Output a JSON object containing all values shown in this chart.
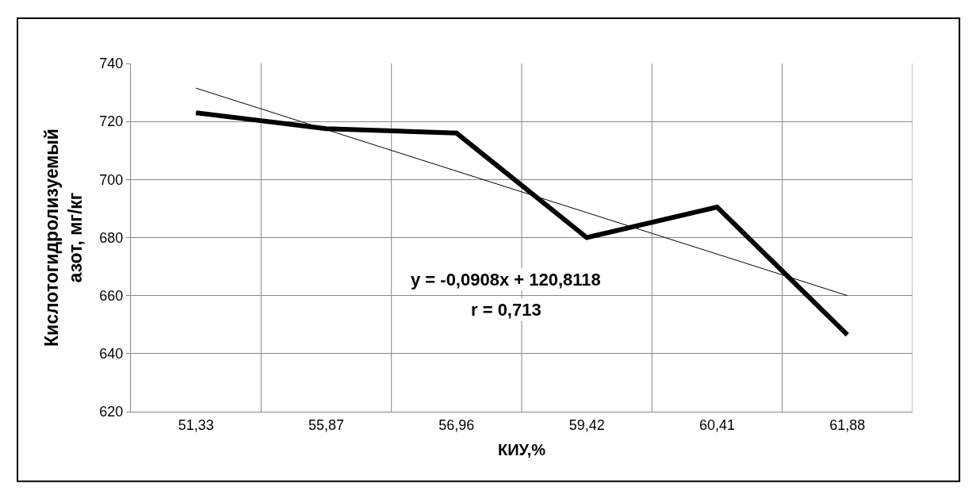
{
  "chart_data": {
    "type": "line",
    "xlabel": "КИУ,%",
    "ylabel": "Кислотогидролизуемый азот, мг/кг",
    "categories": [
      "51,33",
      "55,87",
      "56,96",
      "59,42",
      "60,41",
      "61,88"
    ],
    "series": [
      {
        "color": "#000000",
        "values": [
          723,
          717.5,
          716,
          680,
          690.5,
          646.5
        ]
      },
      {
        "type": "line",
        "color": "#000000",
        "x": [
          "51,33",
          "55,87",
          "56,96",
          "59,42",
          "60,41",
          "61,88"
        ],
        "values": [
          731.5,
          717.2,
          702.9,
          688.6,
          674.3,
          660.0
        ]
      }
    ],
    "ylim": [
      620,
      740
    ],
    "yticks": [
      620,
      640,
      660,
      680,
      700,
      720,
      740
    ],
    "grid": true,
    "marker": "none",
    "line_style": "solid",
    "annotations": [
      "y = -0,0908x + 120,8118",
      "r = 0,713"
    ]
  }
}
